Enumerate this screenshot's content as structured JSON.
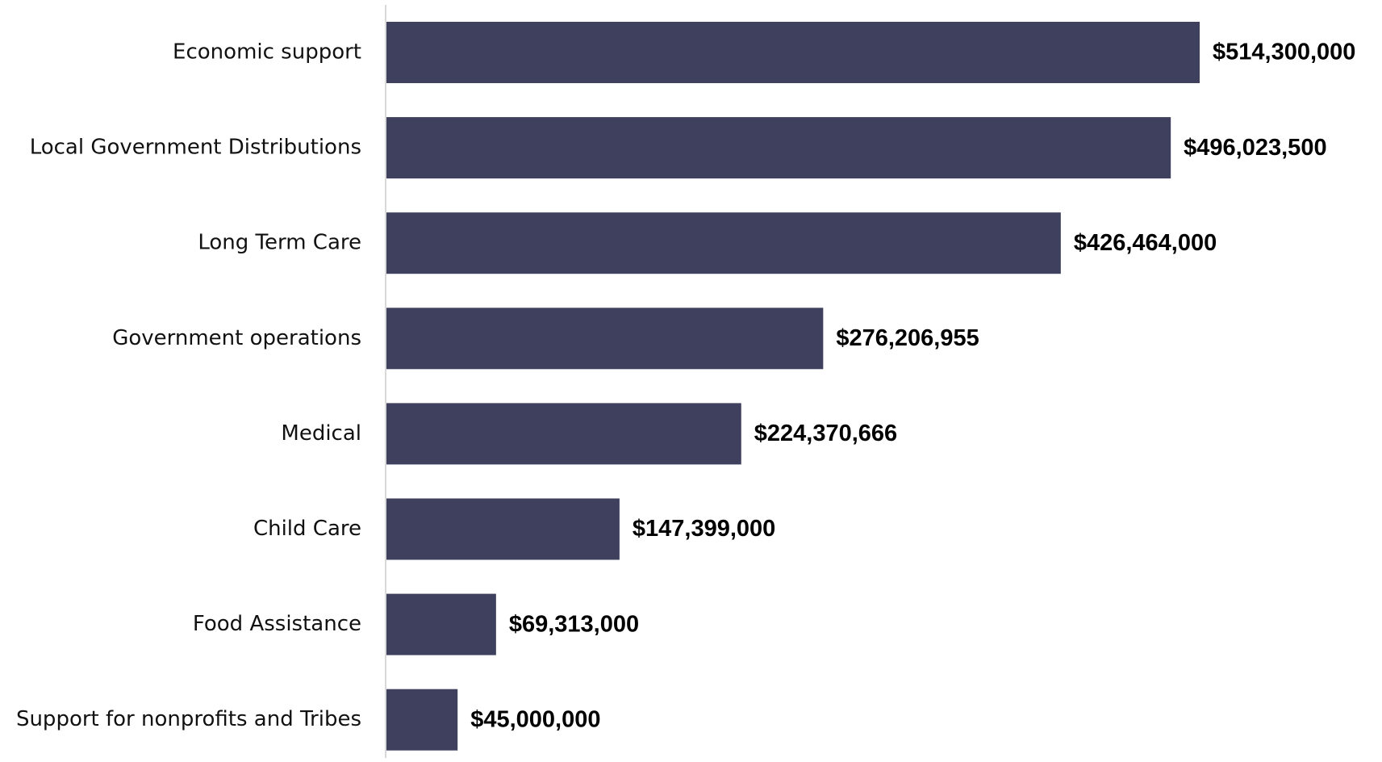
{
  "chart_data": {
    "type": "bar",
    "orientation": "horizontal",
    "title": "",
    "xlabel": "",
    "ylabel": "",
    "categories": [
      "Economic support",
      "Local Government Distributions",
      "Long Term Care",
      "Government operations",
      "Medical",
      "Child Care",
      "Food Assistance",
      "Support for nonprofits and Tribes"
    ],
    "values": [
      514300000,
      496023500,
      426464000,
      276206955,
      224370666,
      147399000,
      69313000,
      45000000
    ],
    "value_labels": [
      "$514,300,000",
      "$496,023,500",
      "$426,464,000",
      "$276,206,955",
      "$224,370,666",
      "$147,399,000",
      "$69,313,000",
      "$45,000,000"
    ],
    "xlim": [
      0,
      514300000
    ],
    "grid": false,
    "legend": "none",
    "colors": {
      "bar": "#3e405d",
      "axis": "#d9d9d9",
      "label_text": "#111111",
      "value_text": "#000000"
    }
  }
}
